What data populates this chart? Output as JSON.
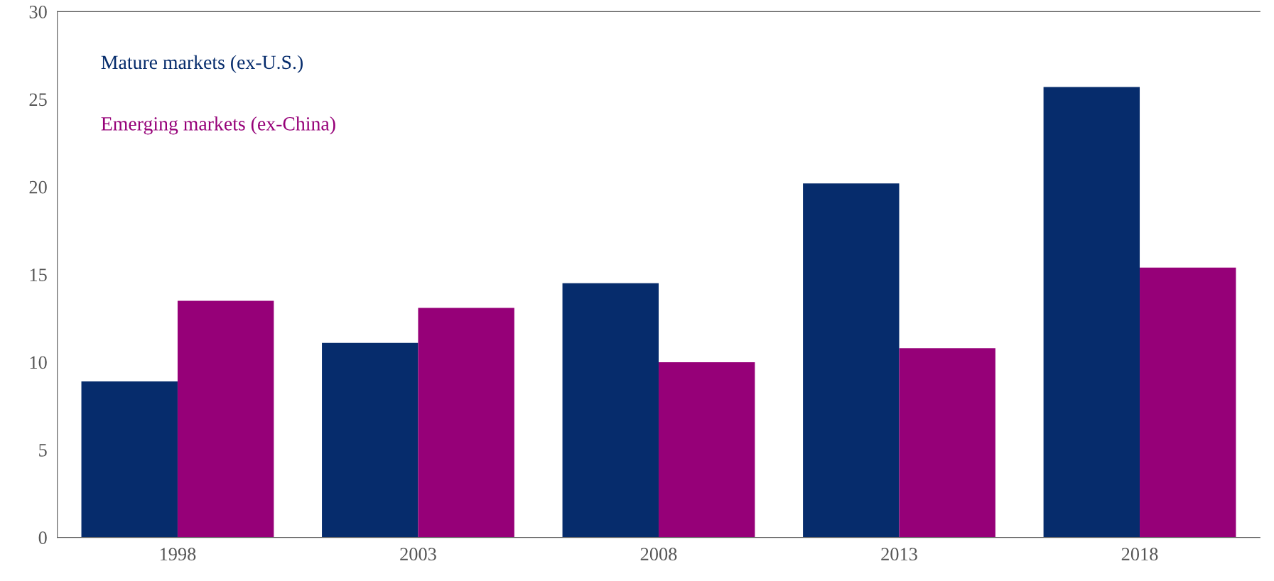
{
  "chart_data": {
    "type": "bar",
    "categories": [
      "1998",
      "2003",
      "2008",
      "2013",
      "2018"
    ],
    "series": [
      {
        "name": "Mature markets (ex-U.S.)",
        "color": "#062c6c",
        "values": [
          8.9,
          11.1,
          14.5,
          20.2,
          25.7
        ]
      },
      {
        "name": "Emerging markets (ex-China)",
        "color": "#960078",
        "values": [
          13.5,
          13.1,
          10.0,
          10.8,
          15.4
        ]
      }
    ],
    "ylim": [
      0,
      30
    ],
    "yticks": [
      0,
      5,
      10,
      15,
      20,
      25,
      30
    ],
    "grid": false,
    "legend": "top left"
  }
}
